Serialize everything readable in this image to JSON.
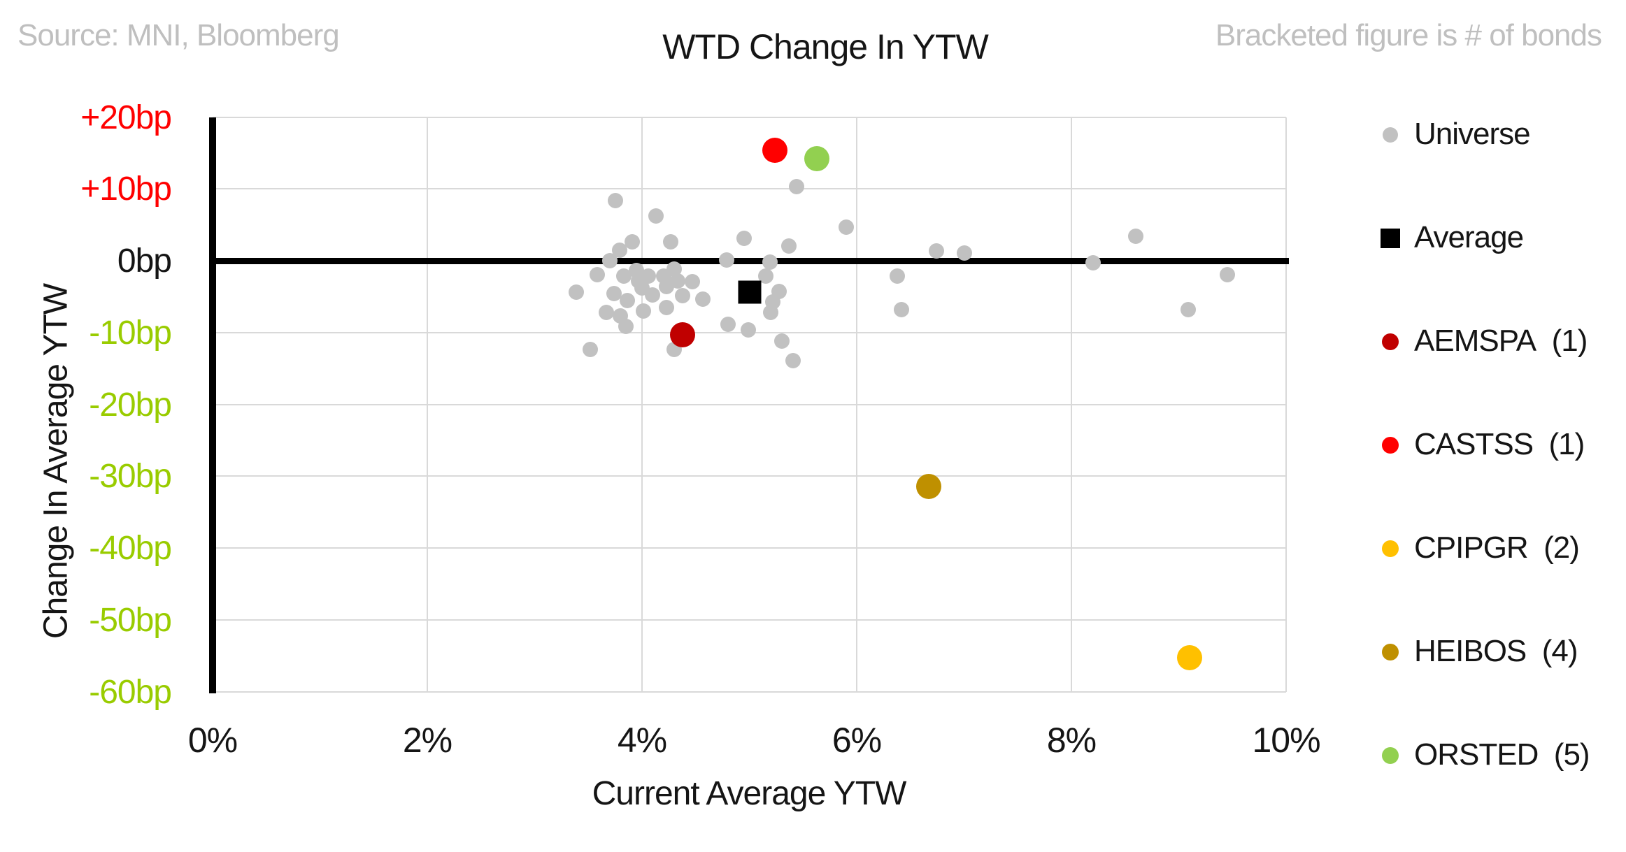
{
  "header": {
    "source": "Source: MNI, Bloomberg",
    "title": "WTD Change In YTW",
    "note": "Bracketed figure is # of bonds"
  },
  "legend": {
    "items": [
      {
        "label": "Universe",
        "marker": "circle",
        "color": "#C1C1C1"
      },
      {
        "label": "Average",
        "marker": "square",
        "color": "#000000"
      },
      {
        "label": "AEMSPA  (1)",
        "name": "AEMSPA",
        "bonds": 1,
        "marker": "circle",
        "color": "#C00000"
      },
      {
        "label": "CASTSS  (1)",
        "name": "CASTSS",
        "bonds": 1,
        "marker": "circle",
        "color": "#FF0000"
      },
      {
        "label": "CPIPGR  (2)",
        "name": "CPIPGR",
        "bonds": 2,
        "marker": "circle",
        "color": "#FFC000"
      },
      {
        "label": "HEIBOS  (4)",
        "name": "HEIBOS",
        "bonds": 4,
        "marker": "circle",
        "color": "#BF9000"
      },
      {
        "label": "ORSTED  (5)",
        "name": "ORSTED",
        "bonds": 5,
        "marker": "circle",
        "color": "#92D050"
      }
    ]
  },
  "chart_data": {
    "type": "scatter",
    "title": "WTD Change In YTW",
    "xlabel": "Current Average YTW",
    "ylabel": "Change In Average YTW",
    "grid": true,
    "legend_position": "right",
    "x_axis": {
      "min": 0,
      "max": 10,
      "unit": "%",
      "ticks": [
        {
          "value": 0,
          "label": "0%"
        },
        {
          "value": 2,
          "label": "2%"
        },
        {
          "value": 4,
          "label": "4%"
        },
        {
          "value": 6,
          "label": "6%"
        },
        {
          "value": 8,
          "label": "8%"
        },
        {
          "value": 10,
          "label": "10%"
        }
      ]
    },
    "y_axis": {
      "min": -60,
      "max": 20,
      "unit": "bp",
      "ticks": [
        {
          "value": 20,
          "label": "+20bp",
          "color": "#FF0000"
        },
        {
          "value": 10,
          "label": "+10bp",
          "color": "#FF0000"
        },
        {
          "value": 0,
          "label": "0bp",
          "color": "#151515"
        },
        {
          "value": -10,
          "label": "-10bp",
          "color": "#99CC00"
        },
        {
          "value": -20,
          "label": "-20bp",
          "color": "#99CC00"
        },
        {
          "value": -30,
          "label": "-30bp",
          "color": "#99CC00"
        },
        {
          "value": -40,
          "label": "-40bp",
          "color": "#99CC00"
        },
        {
          "value": -50,
          "label": "-50bp",
          "color": "#99CC00"
        },
        {
          "value": -60,
          "label": "-60bp",
          "color": "#99CC00"
        }
      ]
    },
    "series": [
      {
        "name": "Universe",
        "marker": "circle",
        "color": "#C1C1C1",
        "points": [
          [
            3.75,
            8.4
          ],
          [
            4.13,
            6.2
          ],
          [
            3.91,
            2.6
          ],
          [
            4.27,
            2.6
          ],
          [
            3.79,
            1.5
          ],
          [
            3.7,
            0.0
          ],
          [
            4.79,
            0.1
          ],
          [
            3.58,
            -1.9
          ],
          [
            3.83,
            -2.1
          ],
          [
            3.95,
            -1.4
          ],
          [
            4.06,
            -2.1
          ],
          [
            4.2,
            -2.1
          ],
          [
            4.3,
            -1.2
          ],
          [
            3.39,
            -4.4
          ],
          [
            3.74,
            -4.6
          ],
          [
            3.86,
            -5.5
          ],
          [
            3.97,
            -2.8
          ],
          [
            4.0,
            -3.8
          ],
          [
            4.1,
            -4.8
          ],
          [
            4.23,
            -3.6
          ],
          [
            4.33,
            -2.8
          ],
          [
            4.47,
            -2.9
          ],
          [
            4.38,
            -4.9
          ],
          [
            4.57,
            -5.4
          ],
          [
            3.67,
            -7.2
          ],
          [
            3.8,
            -7.7
          ],
          [
            4.01,
            -7.0
          ],
          [
            4.23,
            -6.5
          ],
          [
            3.85,
            -9.1
          ],
          [
            4.8,
            -8.9
          ],
          [
            3.52,
            -12.4
          ],
          [
            4.3,
            -12.4
          ],
          [
            5.44,
            10.3
          ],
          [
            5.9,
            4.7
          ],
          [
            4.95,
            3.1
          ],
          [
            5.37,
            2.0
          ],
          [
            5.19,
            -0.2
          ],
          [
            5.15,
            -2.1
          ],
          [
            6.38,
            -2.1
          ],
          [
            5.28,
            -4.3
          ],
          [
            5.22,
            -5.7
          ],
          [
            5.2,
            -7.2
          ],
          [
            4.99,
            -9.6
          ],
          [
            5.3,
            -11.2
          ],
          [
            5.41,
            -13.9
          ],
          [
            6.74,
            1.4
          ],
          [
            7.0,
            1.1
          ],
          [
            6.42,
            -6.8
          ],
          [
            8.6,
            3.4
          ],
          [
            8.2,
            -0.3
          ],
          [
            9.45,
            -1.9
          ],
          [
            9.09,
            -6.8
          ]
        ]
      },
      {
        "name": "AEMSPA",
        "bonds": 1,
        "marker": "circle",
        "color": "#C00000",
        "points": [
          [
            4.38,
            -10.3
          ]
        ]
      },
      {
        "name": "CASTSS",
        "bonds": 1,
        "marker": "circle",
        "color": "#FF0000",
        "points": [
          [
            5.24,
            15.4
          ]
        ]
      },
      {
        "name": "CPIPGR",
        "bonds": 2,
        "marker": "circle",
        "color": "#FFC000",
        "points": [
          [
            9.1,
            -55.3
          ]
        ]
      },
      {
        "name": "HEIBOS",
        "bonds": 4,
        "marker": "circle",
        "color": "#BF9000",
        "points": [
          [
            6.67,
            -31.4
          ]
        ]
      },
      {
        "name": "ORSTED",
        "bonds": 5,
        "marker": "circle",
        "color": "#92D050",
        "points": [
          [
            5.63,
            14.2
          ]
        ]
      },
      {
        "name": "Average",
        "marker": "square",
        "color": "#000000",
        "points": [
          [
            5.0,
            -4.4
          ]
        ]
      }
    ]
  }
}
